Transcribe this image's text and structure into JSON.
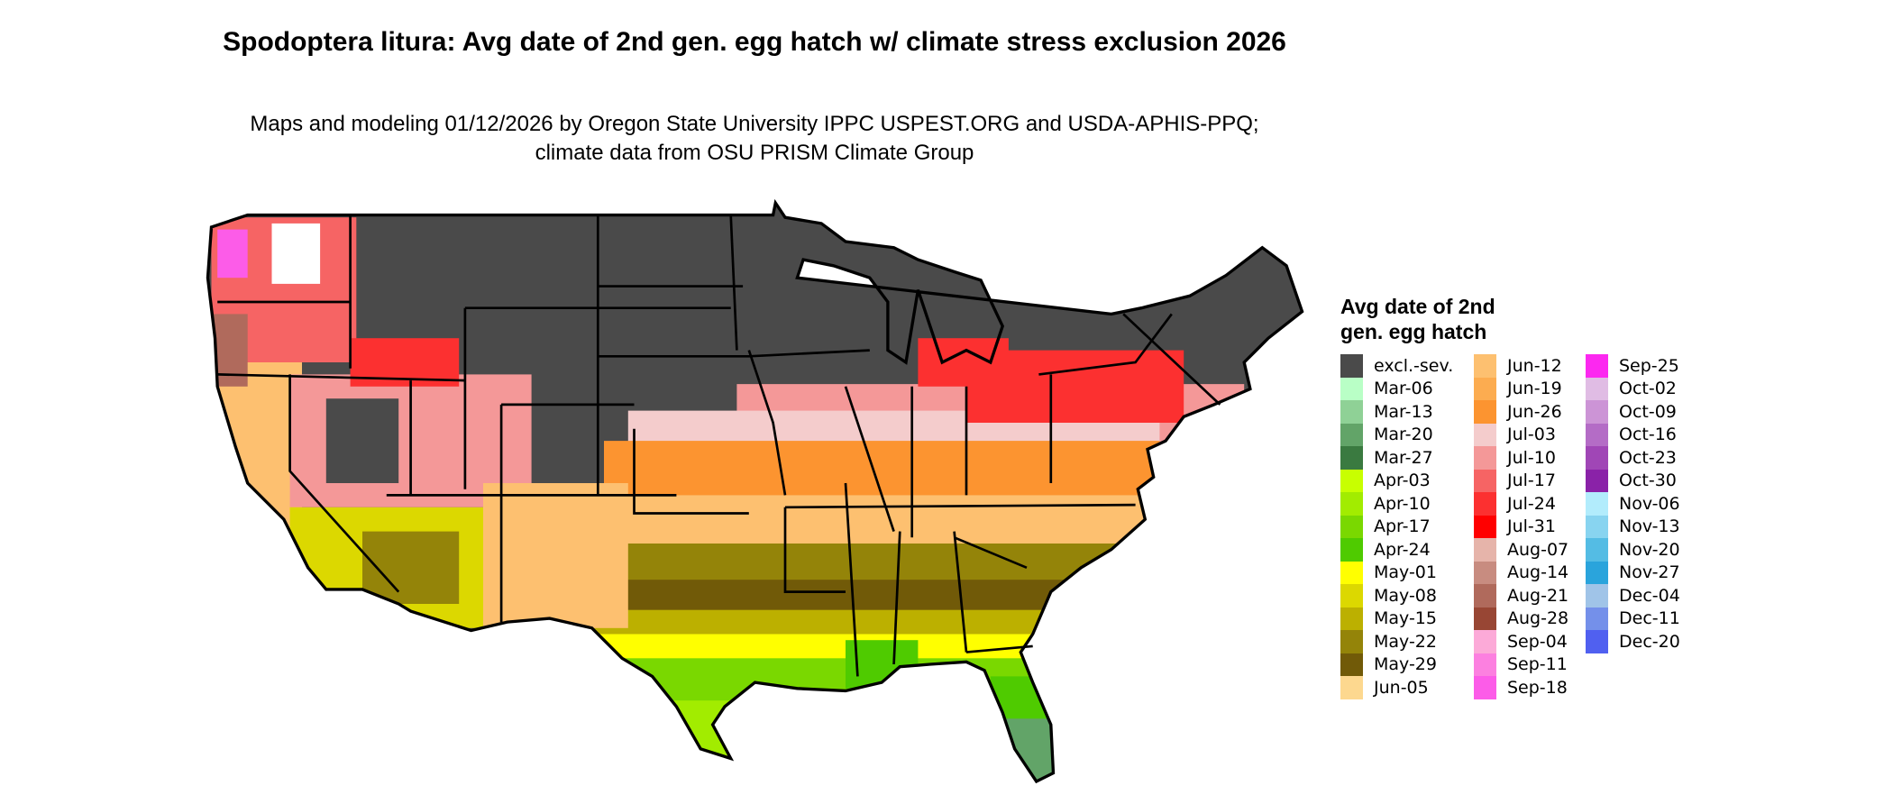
{
  "title": "Spodoptera litura: Avg date of 2nd gen. egg hatch w/ climate stress exclusion 2026",
  "subtitle": "Maps and modeling 01/12/2026 by Oregon State University IPPC USPEST.ORG and USDA-APHIS-PPQ; climate data from OSU PRISM Climate Group",
  "legend": {
    "title": "Avg date of 2nd gen. egg hatch",
    "items": [
      {
        "label": "excl.-sev.",
        "color": "#4a4a4a"
      },
      {
        "label": "Mar-06",
        "color": "#b9ffc6"
      },
      {
        "label": "Mar-13",
        "color": "#8fd196"
      },
      {
        "label": "Mar-20",
        "color": "#62a468"
      },
      {
        "label": "Mar-27",
        "color": "#3a7a40"
      },
      {
        "label": "Apr-03",
        "color": "#c8ff00"
      },
      {
        "label": "Apr-10",
        "color": "#a2ec00"
      },
      {
        "label": "Apr-17",
        "color": "#7ad800"
      },
      {
        "label": "Apr-24",
        "color": "#4fcb00"
      },
      {
        "label": "May-01",
        "color": "#ffff00"
      },
      {
        "label": "May-08",
        "color": "#dcd800"
      },
      {
        "label": "May-15",
        "color": "#bcb000"
      },
      {
        "label": "May-22",
        "color": "#948409"
      },
      {
        "label": "May-29",
        "color": "#715a08"
      },
      {
        "label": "Jun-05",
        "color": "#fdd88f"
      },
      {
        "label": "Jun-12",
        "color": "#fdc070"
      },
      {
        "label": "Jun-19",
        "color": "#fcac50"
      },
      {
        "label": "Jun-26",
        "color": "#fc9430"
      },
      {
        "label": "Jul-03",
        "color": "#f4cccc"
      },
      {
        "label": "Jul-10",
        "color": "#f49898"
      },
      {
        "label": "Jul-17",
        "color": "#f66464"
      },
      {
        "label": "Jul-24",
        "color": "#fc3030"
      },
      {
        "label": "Jul-31",
        "color": "#ff0000"
      },
      {
        "label": "Aug-07",
        "color": "#e6b4aa"
      },
      {
        "label": "Aug-14",
        "color": "#c88c80"
      },
      {
        "label": "Aug-21",
        "color": "#b06a5c"
      },
      {
        "label": "Aug-28",
        "color": "#984634"
      },
      {
        "label": "Sep-04",
        "color": "#fcaad8"
      },
      {
        "label": "Sep-11",
        "color": "#fc80e0"
      },
      {
        "label": "Sep-18",
        "color": "#fc5ce8"
      },
      {
        "label": "Sep-25",
        "color": "#fc28f0"
      },
      {
        "label": "Oct-02",
        "color": "#e0bce4"
      },
      {
        "label": "Oct-09",
        "color": "#cc94d6"
      },
      {
        "label": "Oct-16",
        "color": "#b46cc6"
      },
      {
        "label": "Oct-23",
        "color": "#a046b6"
      },
      {
        "label": "Oct-30",
        "color": "#8a22a8"
      },
      {
        "label": "Nov-06",
        "color": "#b2ecfc"
      },
      {
        "label": "Nov-13",
        "color": "#88d4f0"
      },
      {
        "label": "Nov-20",
        "color": "#54bce4"
      },
      {
        "label": "Nov-27",
        "color": "#2aa4dc"
      },
      {
        "label": "Dec-04",
        "color": "#a0c4e8"
      },
      {
        "label": "Dec-11",
        "color": "#7490ea"
      },
      {
        "label": "Dec-20",
        "color": "#5060f0"
      }
    ]
  }
}
